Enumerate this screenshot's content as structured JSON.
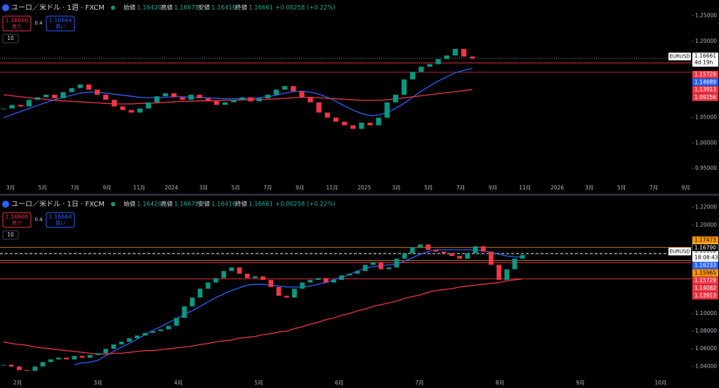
{
  "panels": [
    {
      "symbol": "ユーロ／米ドル · 1週 · FXCM",
      "ohlc": [
        {
          "k": "始値",
          "v": "1.16420"
        },
        {
          "k": "高値",
          "v": "1.16678"
        },
        {
          "k": "安値",
          "v": "1.16416"
        },
        {
          "k": "終値",
          "v": "1.16661"
        }
      ],
      "change": "+0.00258 (+0.22%)",
      "sell": {
        "price": "1.16660",
        "label": "売り"
      },
      "spread": "0.4",
      "buy": {
        "price": "1.16664",
        "label": "買い"
      },
      "qty": "10",
      "ylim": [
        0.92,
        1.27
      ],
      "yticks": [
        {
          "value": 1.25,
          "label": "1.25000"
        },
        {
          "value": 1.2,
          "label": "1.20000"
        },
        {
          "value": 1.05,
          "label": "1.05000"
        },
        {
          "value": 1.0,
          "label": "1.00000"
        },
        {
          "value": 0.95,
          "label": "0.95000"
        }
      ],
      "xlabels": [
        "3月",
        "5月",
        "7月",
        "9月",
        "11月",
        "2024",
        "3月",
        "5月",
        "7月",
        "9月",
        "11月",
        "2025",
        "3月",
        "5月",
        "7月",
        "9月",
        "11月",
        "2026",
        "3月",
        "5月",
        "7月",
        "9月"
      ],
      "closes": [
        1.068,
        1.075,
        1.072,
        1.085,
        1.09,
        1.095,
        1.088,
        1.1,
        1.108,
        1.115,
        1.105,
        1.095,
        1.085,
        1.072,
        1.065,
        1.06,
        1.068,
        1.08,
        1.092,
        1.098,
        1.09,
        1.085,
        1.095,
        1.088,
        1.082,
        1.075,
        1.08,
        1.085,
        1.09,
        1.082,
        1.088,
        1.095,
        1.105,
        1.112,
        1.102,
        1.09,
        1.08,
        1.06,
        1.05,
        1.042,
        1.035,
        1.028,
        1.04,
        1.035,
        1.05,
        1.08,
        1.095,
        1.125,
        1.14,
        1.15,
        1.155,
        1.165,
        1.172,
        1.185,
        1.17,
        1.166
      ],
      "ma": [
        {
          "color": "#2962ff",
          "values": [
            1.05,
            1.056,
            1.062,
            1.068,
            1.074,
            1.08,
            1.085,
            1.09,
            1.094,
            1.098,
            1.1,
            1.1,
            1.098,
            1.096,
            1.094,
            1.092,
            1.09,
            1.089,
            1.089,
            1.09,
            1.091,
            1.091,
            1.09,
            1.09,
            1.089,
            1.088,
            1.087,
            1.087,
            1.087,
            1.088,
            1.089,
            1.091,
            1.094,
            1.098,
            1.101,
            1.102,
            1.1,
            1.096,
            1.09,
            1.082,
            1.073,
            1.065,
            1.058,
            1.054,
            1.055,
            1.06,
            1.068,
            1.078,
            1.09,
            1.102,
            1.112,
            1.122,
            1.13,
            1.138,
            1.143,
            1.147
          ]
        },
        {
          "color": "#f23645",
          "values": [
            1.095,
            1.093,
            1.091,
            1.089,
            1.087,
            1.086,
            1.084,
            1.083,
            1.082,
            1.081,
            1.08,
            1.079,
            1.078,
            1.077,
            1.077,
            1.077,
            1.078,
            1.078,
            1.079,
            1.08,
            1.081,
            1.082,
            1.082,
            1.083,
            1.083,
            1.083,
            1.084,
            1.084,
            1.085,
            1.085,
            1.086,
            1.086,
            1.087,
            1.088,
            1.089,
            1.09,
            1.09,
            1.089,
            1.088,
            1.087,
            1.086,
            1.085,
            1.084,
            1.084,
            1.084,
            1.085,
            1.087,
            1.089,
            1.091,
            1.093,
            1.095,
            1.097,
            1.099,
            1.101,
            1.103,
            1.105
          ]
        }
      ],
      "symbol_tag": "EURUSD",
      "last": {
        "value": 1.16661,
        "label": "1.16661",
        "countdown": "4d 19h"
      },
      "tags": [
        {
          "value": 1.15729,
          "label": "1.15729",
          "color": "#f23645",
          "line": "solid"
        },
        {
          "value": 1.14689,
          "label": "1.14689",
          "color": "#2962ff"
        },
        {
          "value": 1.13913,
          "label": "1.13913",
          "color": "#f23645",
          "line": "solid"
        },
        {
          "value": 1.09256,
          "label": "1.09256",
          "color": "#f23645"
        }
      ]
    },
    {
      "symbol": "ユーロ／米ドル · 1日 · FXCM",
      "ohlc": [
        {
          "k": "始値",
          "v": "1.16420"
        },
        {
          "k": "高値",
          "v": "1.16678"
        },
        {
          "k": "安値",
          "v": "1.16416"
        },
        {
          "k": "終値",
          "v": "1.16661"
        }
      ],
      "change": "+0.00258 (+0.22%)",
      "sell": {
        "price": "1.16660",
        "label": "売り"
      },
      "spread": "0.4",
      "buy": {
        "price": "1.16664",
        "label": "買い"
      },
      "qty": "10",
      "ylim": [
        1.026,
        1.226
      ],
      "yticks": [
        {
          "value": 1.22,
          "label": "1.22000"
        },
        {
          "value": 1.2,
          "label": "1.20000"
        },
        {
          "value": 1.1,
          "label": "1.10000"
        },
        {
          "value": 1.08,
          "label": "1.08000"
        },
        {
          "value": 1.06,
          "label": "1.06000"
        },
        {
          "value": 1.04,
          "label": "1.04000"
        }
      ],
      "xlabels": [
        "2月",
        "3月",
        "4月",
        "5月",
        "6月",
        "7月",
        "8月",
        "9月",
        "10月"
      ],
      "closes": [
        1.042,
        1.04,
        1.036,
        1.035,
        1.04,
        1.045,
        1.048,
        1.05,
        1.048,
        1.052,
        1.05,
        1.053,
        1.055,
        1.06,
        1.065,
        1.068,
        1.072,
        1.075,
        1.078,
        1.08,
        1.082,
        1.086,
        1.095,
        1.108,
        1.118,
        1.128,
        1.135,
        1.14,
        1.148,
        1.152,
        1.145,
        1.14,
        1.142,
        1.138,
        1.13,
        1.12,
        1.118,
        1.128,
        1.135,
        1.138,
        1.14,
        1.135,
        1.138,
        1.143,
        1.145,
        1.148,
        1.155,
        1.158,
        1.15,
        1.152,
        1.162,
        1.168,
        1.175,
        1.178,
        1.172,
        1.17,
        1.168,
        1.165,
        1.162,
        1.168,
        1.176,
        1.17,
        1.155,
        1.138,
        1.15,
        1.162,
        1.166
      ],
      "ma": [
        {
          "color": "#2962ff",
          "values": [
            null,
            null,
            null,
            null,
            null,
            null,
            null,
            null,
            null,
            1.042,
            1.044,
            1.045,
            1.047,
            1.052,
            1.057,
            1.062,
            1.066,
            1.071,
            1.076,
            1.081,
            1.085,
            1.09,
            1.094,
            1.099,
            1.103,
            1.108,
            1.113,
            1.118,
            1.122,
            1.126,
            1.129,
            1.132,
            1.133,
            1.133,
            1.132,
            1.131,
            1.13,
            1.13,
            1.13,
            1.131,
            1.133,
            1.135,
            1.138,
            1.141,
            1.144,
            1.148,
            1.151,
            1.153,
            1.154,
            1.155,
            1.156,
            1.159,
            1.163,
            1.167,
            1.17,
            1.172,
            1.172,
            1.172,
            1.172,
            1.172,
            1.172,
            1.171,
            1.169,
            1.167,
            1.165,
            1.164,
            1.164
          ]
        },
        {
          "color": "#f23645",
          "values": [
            1.068,
            1.066,
            1.065,
            1.064,
            1.062,
            1.061,
            1.06,
            1.059,
            1.058,
            1.057,
            1.056,
            1.055,
            1.054,
            1.054,
            1.055,
            1.055,
            1.056,
            1.057,
            1.058,
            1.058,
            1.059,
            1.06,
            1.061,
            1.062,
            1.063,
            1.065,
            1.066,
            1.068,
            1.069,
            1.07,
            1.072,
            1.073,
            1.074,
            1.076,
            1.077,
            1.079,
            1.08,
            1.083,
            1.085,
            1.088,
            1.09,
            1.093,
            1.095,
            1.098,
            1.1,
            1.103,
            1.105,
            1.108,
            1.11,
            1.112,
            1.114,
            1.117,
            1.119,
            1.121,
            1.124,
            1.126,
            1.127,
            1.128,
            1.13,
            1.131,
            1.132,
            1.133,
            1.134,
            1.135,
            1.137,
            1.138,
            1.139
          ]
        }
      ],
      "symbol_tag": "EURUSD",
      "last": {
        "value": 1.16661,
        "label": "1.16661",
        "countdown": "18:08:43"
      },
      "tags": [
        {
          "value": 1.17473,
          "label": "1.17473",
          "color": "#ff9800",
          "line": "solid"
        },
        {
          "value": 1.1679,
          "label": "1.16790",
          "color": "#ffffff",
          "line": "dashed"
        },
        {
          "value": 1.16233,
          "label": "1.16233",
          "color": "#2962ff"
        },
        {
          "value": 1.15965,
          "label": "1.15965",
          "color": "#ff9800",
          "line": "solid"
        },
        {
          "value": 1.15729,
          "label": "1.15729",
          "color": "#f23645",
          "line": "solid"
        },
        {
          "value": 1.14082,
          "label": "1.14082",
          "color": "#f23645"
        },
        {
          "value": 1.13913,
          "label": "1.13913",
          "color": "#f23645",
          "line": "solid"
        }
      ]
    }
  ]
}
